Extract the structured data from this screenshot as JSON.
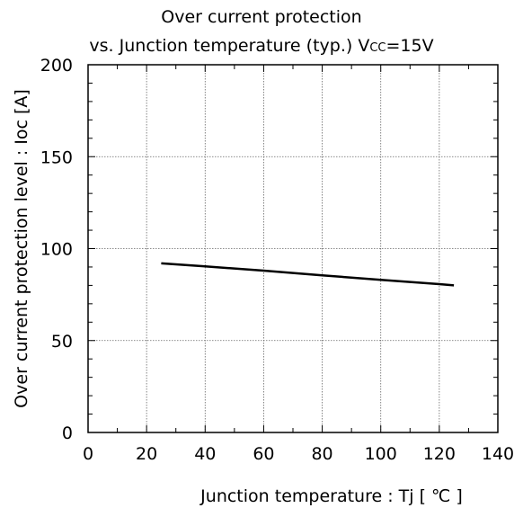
{
  "chart_data": {
    "type": "line",
    "title": "Over current protection",
    "subtitle": "vs. Junction temperature (typ.) Vcc=15V",
    "xlabel": "Junction temperature : Tj [ ℃ ]",
    "ylabel": "Over current protection level : Ioc [A]",
    "xlim": [
      0,
      140
    ],
    "ylim": [
      0,
      200
    ],
    "x_ticks": [
      0,
      20,
      40,
      60,
      80,
      100,
      120,
      140
    ],
    "y_ticks": [
      0,
      50,
      100,
      150,
      200
    ],
    "grid": true,
    "series": [
      {
        "x": [
          25,
          40,
          60,
          80,
          100,
          120,
          125
        ],
        "y": [
          92,
          90.3,
          88,
          85.5,
          83,
          80.7,
          80
        ]
      }
    ],
    "colors": {
      "line": "#000000",
      "grid": "#666666",
      "axis": "#000000"
    }
  }
}
